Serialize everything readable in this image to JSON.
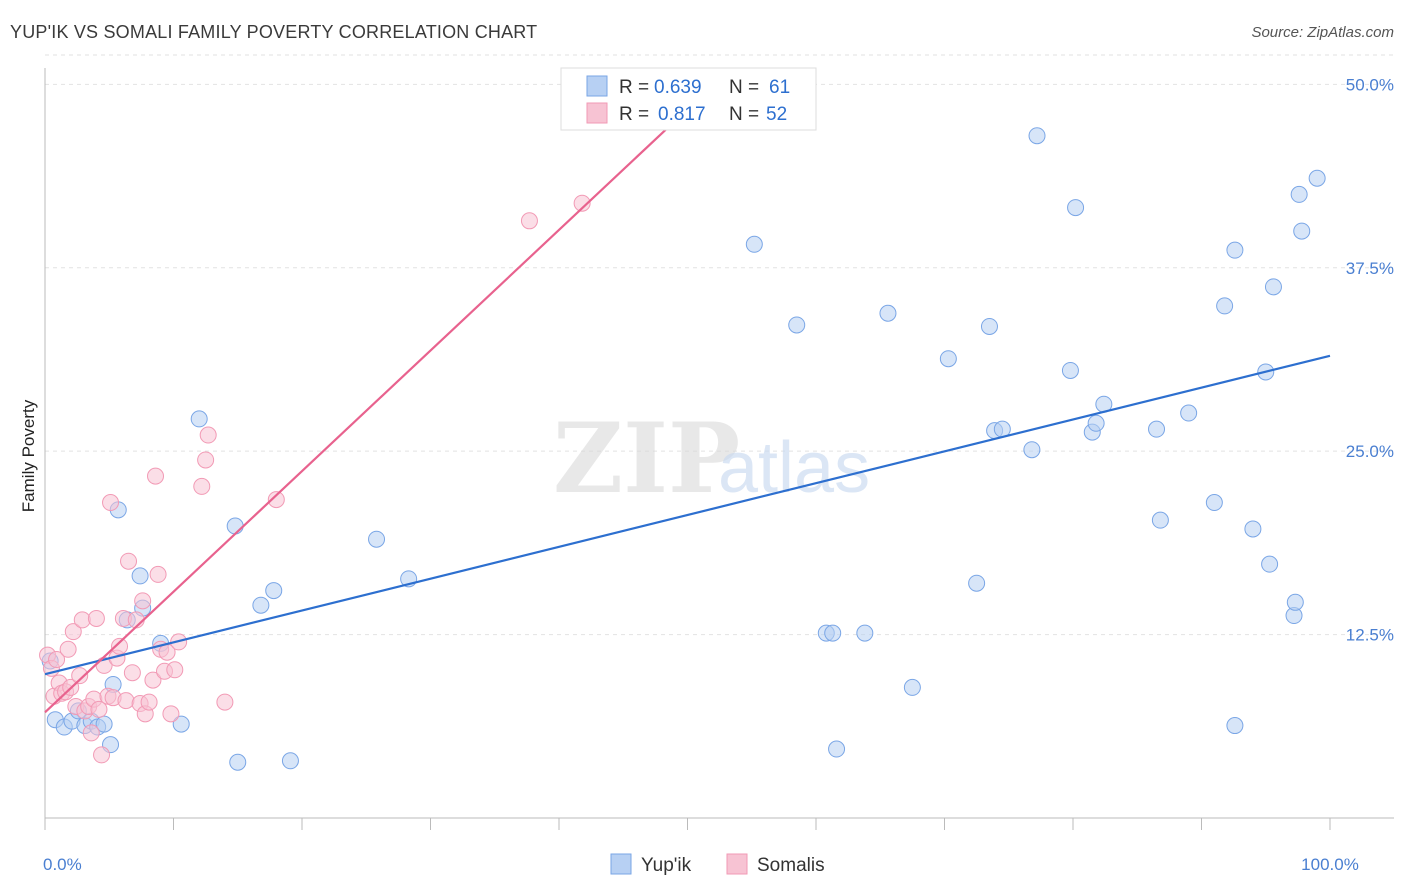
{
  "header": {
    "title": "YUP'IK VS SOMALI FAMILY POVERTY CORRELATION CHART",
    "source": "Source: ZipAtlas.com"
  },
  "watermark": {
    "zip": "ZIP",
    "atlas": "atlas"
  },
  "chart_data": {
    "type": "scatter",
    "ylabel": "Family Poverty",
    "xlim": [
      0,
      100
    ],
    "ylim": [
      0,
      52
    ],
    "x_tick_labels": [
      {
        "value": 0,
        "label": "0.0%"
      },
      {
        "value": 100,
        "label": "100.0%"
      }
    ],
    "y_tick_labels": [
      {
        "value": 12.5,
        "label": "12.5%"
      },
      {
        "value": 25.0,
        "label": "25.0%"
      },
      {
        "value": 37.5,
        "label": "37.5%"
      },
      {
        "value": 50.0,
        "label": "50.0%"
      }
    ],
    "grid": "horizontal dashed",
    "legend_stats": [
      {
        "r_label": "R =",
        "r": "0.639",
        "n_label": "N =",
        "n": "61",
        "color": "#7aa6e6"
      },
      {
        "r_label": "R =",
        "r": "0.817",
        "n_label": "N =",
        "n": "52",
        "color": "#f29ab5"
      }
    ],
    "series": [
      {
        "name": "Yup'ik",
        "fill": "#b7d0f3",
        "stroke": "#7aa6e6",
        "line_color": "#2d6fcf",
        "trend": {
          "x0": 0,
          "y0": 9.8,
          "x1": 100,
          "y1": 31.5
        },
        "points": [
          [
            0.4,
            10.7
          ],
          [
            0.8,
            6.7
          ],
          [
            1.5,
            6.2
          ],
          [
            2.1,
            6.6
          ],
          [
            2.6,
            7.3
          ],
          [
            3.1,
            6.3
          ],
          [
            3.6,
            6.6
          ],
          [
            4.1,
            6.2
          ],
          [
            4.6,
            6.4
          ],
          [
            5.1,
            5.0
          ],
          [
            5.3,
            9.1
          ],
          [
            5.7,
            21.0
          ],
          [
            6.4,
            13.5
          ],
          [
            7.4,
            16.5
          ],
          [
            7.6,
            14.3
          ],
          [
            9.0,
            11.9
          ],
          [
            10.6,
            6.4
          ],
          [
            12.0,
            27.2
          ],
          [
            14.8,
            19.9
          ],
          [
            15.0,
            3.8
          ],
          [
            16.8,
            14.5
          ],
          [
            17.8,
            15.5
          ],
          [
            19.1,
            3.9
          ],
          [
            25.8,
            19.0
          ],
          [
            28.3,
            16.3
          ],
          [
            55.2,
            39.1
          ],
          [
            58.5,
            33.6
          ],
          [
            60.8,
            12.6
          ],
          [
            61.3,
            12.6
          ],
          [
            61.6,
            4.7
          ],
          [
            63.8,
            12.6
          ],
          [
            65.6,
            34.4
          ],
          [
            67.5,
            8.9
          ],
          [
            70.3,
            31.3
          ],
          [
            72.5,
            16.0
          ],
          [
            73.5,
            33.5
          ],
          [
            73.9,
            26.4
          ],
          [
            74.5,
            26.5
          ],
          [
            76.8,
            25.1
          ],
          [
            77.2,
            46.5
          ],
          [
            79.8,
            30.5
          ],
          [
            80.2,
            41.6
          ],
          [
            81.5,
            26.3
          ],
          [
            81.8,
            26.9
          ],
          [
            82.4,
            28.2
          ],
          [
            86.5,
            26.5
          ],
          [
            86.8,
            20.3
          ],
          [
            89.0,
            27.6
          ],
          [
            91.0,
            21.5
          ],
          [
            91.8,
            34.9
          ],
          [
            92.6,
            38.7
          ],
          [
            92.6,
            6.3
          ],
          [
            94.0,
            19.7
          ],
          [
            95.0,
            30.4
          ],
          [
            95.3,
            17.3
          ],
          [
            95.6,
            36.2
          ],
          [
            97.2,
            13.8
          ],
          [
            97.3,
            14.7
          ],
          [
            97.6,
            42.5
          ],
          [
            97.8,
            40.0
          ],
          [
            99.0,
            43.6
          ]
        ]
      },
      {
        "name": "Somalis",
        "fill": "#f7c3d3",
        "stroke": "#f29ab5",
        "line_color": "#e8628e",
        "trend": {
          "x0": 0,
          "y0": 7.2,
          "x1": 50.0,
          "y1": 48.3
        },
        "points": [
          [
            0.2,
            11.1
          ],
          [
            0.5,
            10.2
          ],
          [
            0.7,
            8.3
          ],
          [
            0.9,
            10.8
          ],
          [
            1.1,
            9.2
          ],
          [
            1.3,
            8.5
          ],
          [
            1.6,
            8.6
          ],
          [
            1.8,
            11.5
          ],
          [
            2.0,
            8.9
          ],
          [
            2.2,
            12.7
          ],
          [
            2.4,
            7.6
          ],
          [
            2.7,
            9.7
          ],
          [
            2.9,
            13.5
          ],
          [
            3.1,
            7.3
          ],
          [
            3.4,
            7.6
          ],
          [
            3.6,
            5.8
          ],
          [
            3.8,
            8.1
          ],
          [
            4.0,
            13.6
          ],
          [
            4.2,
            7.4
          ],
          [
            4.4,
            4.3
          ],
          [
            4.6,
            10.4
          ],
          [
            4.9,
            8.3
          ],
          [
            5.1,
            21.5
          ],
          [
            5.3,
            8.2
          ],
          [
            5.6,
            10.9
          ],
          [
            5.8,
            11.7
          ],
          [
            6.1,
            13.6
          ],
          [
            6.3,
            8.0
          ],
          [
            6.5,
            17.5
          ],
          [
            6.8,
            9.9
          ],
          [
            7.1,
            13.5
          ],
          [
            7.4,
            7.8
          ],
          [
            7.6,
            14.8
          ],
          [
            7.8,
            7.1
          ],
          [
            8.1,
            7.9
          ],
          [
            8.4,
            9.4
          ],
          [
            8.6,
            23.3
          ],
          [
            8.8,
            16.6
          ],
          [
            9.0,
            11.5
          ],
          [
            9.3,
            10.0
          ],
          [
            9.5,
            11.3
          ],
          [
            9.8,
            7.1
          ],
          [
            10.1,
            10.1
          ],
          [
            10.4,
            12.0
          ],
          [
            12.2,
            22.6
          ],
          [
            12.5,
            24.4
          ],
          [
            12.7,
            26.1
          ],
          [
            14.0,
            7.9
          ],
          [
            18.0,
            21.7
          ],
          [
            37.7,
            40.7
          ],
          [
            41.8,
            41.9
          ],
          [
            50.0,
            48.3
          ]
        ]
      }
    ]
  }
}
